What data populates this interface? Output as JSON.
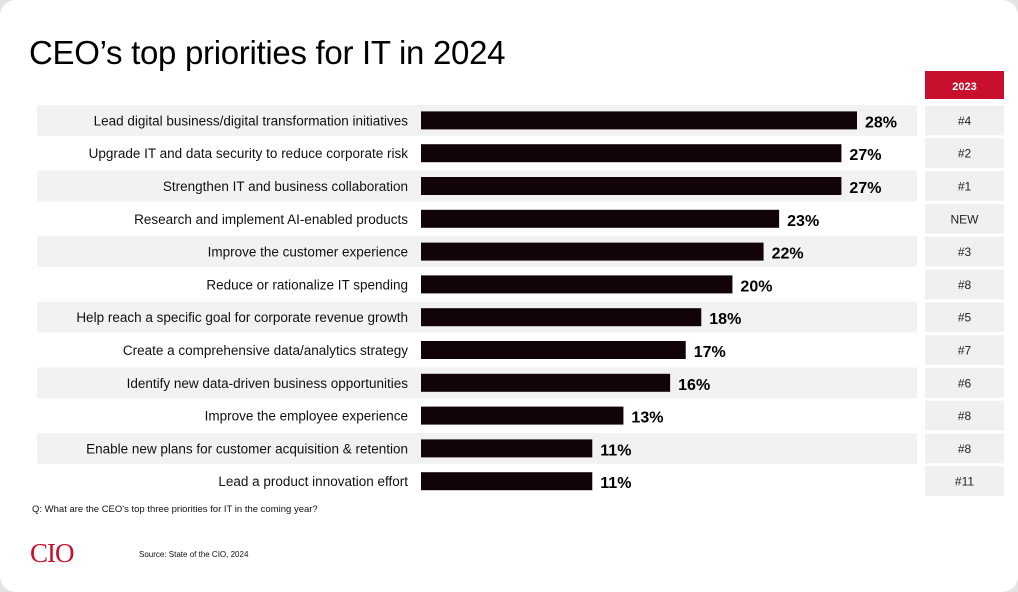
{
  "title": "CEO’s top priorities for IT in 2024",
  "question": "Q: What are the CEO's top three priorities for IT in the coming year?",
  "source": "Source: State of the CIO, 2024",
  "logo_text": "CIO",
  "colors": {
    "bar": "#120406",
    "accent": "#c8102e",
    "row_band": "#f2f2f2",
    "rank_cell": "#f0f0f0"
  },
  "chart_data": {
    "type": "bar",
    "orientation": "horizontal",
    "title": "CEO’s top priorities for IT in 2024",
    "xlim": [
      0,
      30
    ],
    "unit": "%",
    "categories": [
      "Lead digital business/digital transformation initiatives",
      "Upgrade IT and data security to reduce corporate risk",
      "Strengthen IT and business collaboration",
      "Research and implement AI-enabled products",
      "Improve the customer experience",
      "Reduce or rationalize IT spending",
      "Help reach a specific goal for corporate revenue growth",
      "Create a comprehensive data/analytics strategy",
      "Identify new data-driven business opportunities",
      "Improve the employee experience",
      "Enable new plans for customer acquisition & retention",
      "Lead a product innovation effort"
    ],
    "series": [
      {
        "values": [
          28,
          27,
          27,
          23,
          22,
          20,
          18,
          17,
          16,
          13,
          11,
          11
        ]
      }
    ],
    "data_labels": [
      "28%",
      "27%",
      "27%",
      "23%",
      "22%",
      "20%",
      "18%",
      "17%",
      "16%",
      "13%",
      "11%",
      "11%"
    ],
    "rank_column": {
      "header": "2023",
      "values": [
        "#4",
        "#2",
        "#1",
        "NEW",
        "#3",
        "#8",
        "#5",
        "#7",
        "#6",
        "#8",
        "#8",
        "#11"
      ]
    }
  }
}
